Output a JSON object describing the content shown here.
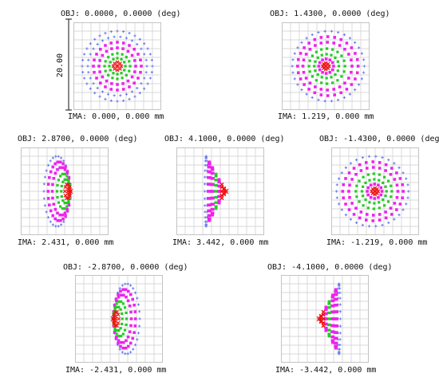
{
  "scale_bar": {
    "label": "20.00"
  },
  "colors": {
    "grid": "#cccccc",
    "frame": "#bbbbbb",
    "blue": "#6677ee",
    "green": "#22cc22",
    "magenta": "#ee22ee",
    "red": "#ee1111"
  },
  "spots": [
    {
      "id": "field-1",
      "obj": "OBJ: 0.0000, 0.0000 (deg)",
      "ima": "IMA: 0.000, 0.000 mm",
      "kind": "centered",
      "flip": false
    },
    {
      "id": "field-2",
      "obj": "OBJ: 1.4300, 0.0000 (deg)",
      "ima": "IMA: 1.219, 0.000 mm",
      "kind": "mild",
      "flip": false
    },
    {
      "id": "field-3",
      "obj": "OBJ: 2.8700, 0.0000 (deg)",
      "ima": "IMA: 2.431, 0.000 mm",
      "kind": "strong",
      "flip": false
    },
    {
      "id": "field-4",
      "obj": "OBJ: 4.1000, 0.0000 (deg)",
      "ima": "IMA: 3.442, 0.000 mm",
      "kind": "extreme",
      "flip": false
    },
    {
      "id": "field-5",
      "obj": "OBJ: -1.4300, 0.0000 (deg)",
      "ima": "IMA: -1.219, 0.000 mm",
      "kind": "mild",
      "flip": true
    },
    {
      "id": "field-6",
      "obj": "OBJ: -2.8700, 0.0000 (deg)",
      "ima": "IMA: -2.431, 0.000 mm",
      "kind": "strong",
      "flip": true
    },
    {
      "id": "field-7",
      "obj": "OBJ: -4.1000, 0.0000 (deg)",
      "ima": "IMA: -3.442, 0.000 mm",
      "kind": "extreme",
      "flip": true
    }
  ]
}
